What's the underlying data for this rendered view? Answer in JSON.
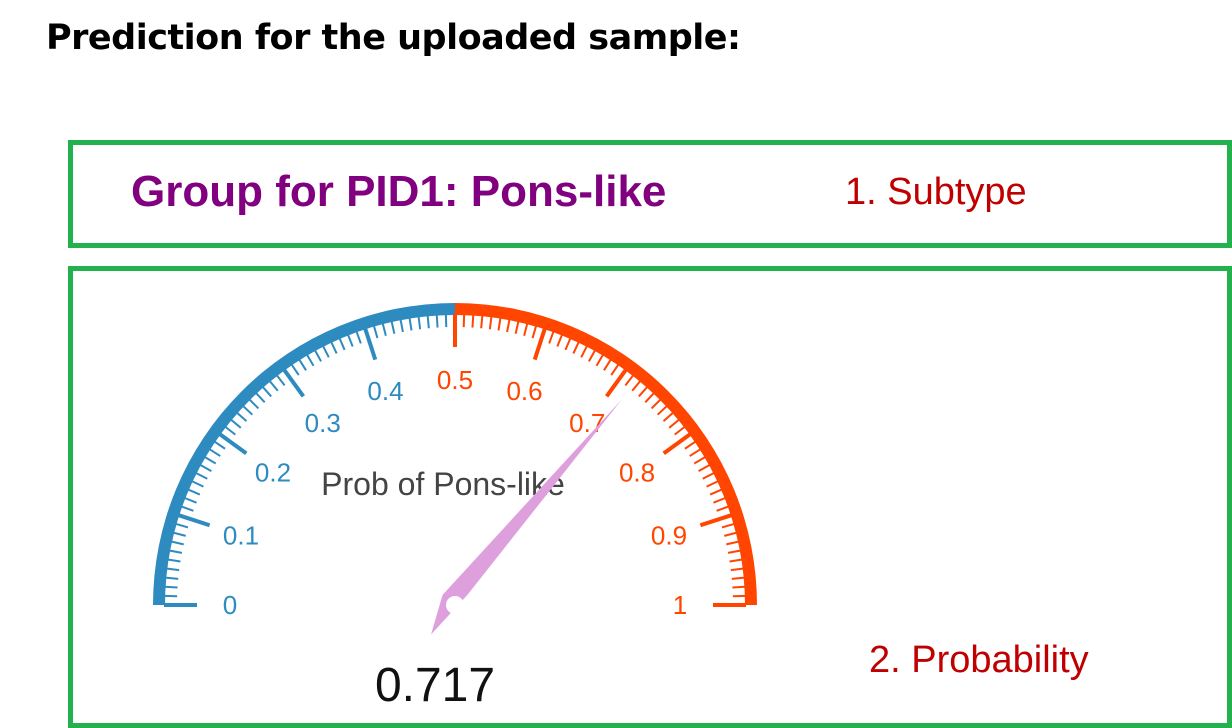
{
  "heading": "Prediction for the uploaded sample:",
  "subtype_panel": {
    "group_label": "Group for PID1: Pons-like",
    "annotation": "1. Subtype"
  },
  "probability_panel": {
    "annotation": "2. Probability",
    "gauge": {
      "title": "Prob of Pons-like",
      "value": 0.717,
      "value_text": "0.717",
      "min": 0,
      "max": 1,
      "threshold": 0.5,
      "tick_labels": [
        "0",
        "0.1",
        "0.2",
        "0.3",
        "0.4",
        "0.5",
        "0.6",
        "0.7",
        "0.8",
        "0.9",
        "1"
      ],
      "colors": {
        "low": "#2e8bc0",
        "high": "#ff4500",
        "needle": "#dda0dd"
      }
    }
  }
}
